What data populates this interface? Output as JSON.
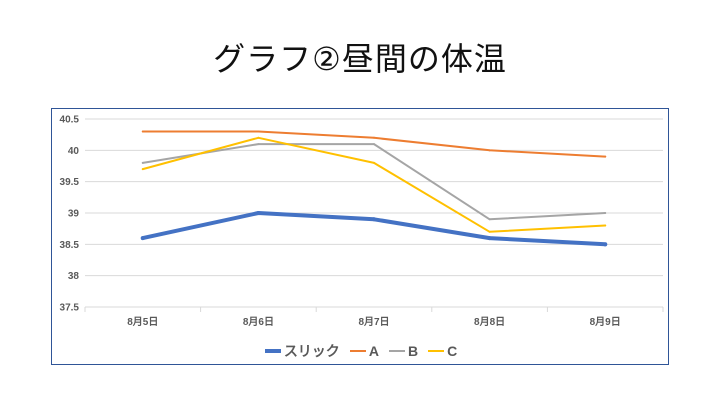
{
  "slide": {
    "title": "グラフ②昼間の体温"
  },
  "chart_data": {
    "type": "line",
    "title": "",
    "xlabel": "",
    "ylabel": "",
    "categories": [
      "8月5日",
      "8月6日",
      "8月7日",
      "8月8日",
      "8月9日"
    ],
    "ylim": [
      37.5,
      40.5
    ],
    "yticks": [
      "37.5",
      "38",
      "38.5",
      "39",
      "39.5",
      "40",
      "40.5"
    ],
    "grid": true,
    "legend_position": "bottom",
    "series": [
      {
        "name": "スリック",
        "values": [
          38.6,
          39.0,
          38.9,
          38.6,
          38.5
        ],
        "color": "#4472c4",
        "emphasis": true
      },
      {
        "name": "A",
        "values": [
          40.3,
          40.3,
          40.2,
          40.0,
          39.9
        ],
        "color": "#ed7d31"
      },
      {
        "name": "B",
        "values": [
          39.8,
          40.1,
          40.1,
          38.9,
          39.0
        ],
        "color": "#a5a5a5"
      },
      {
        "name": "C",
        "values": [
          39.7,
          40.2,
          39.8,
          38.7,
          38.8
        ],
        "color": "#ffc000"
      }
    ]
  }
}
